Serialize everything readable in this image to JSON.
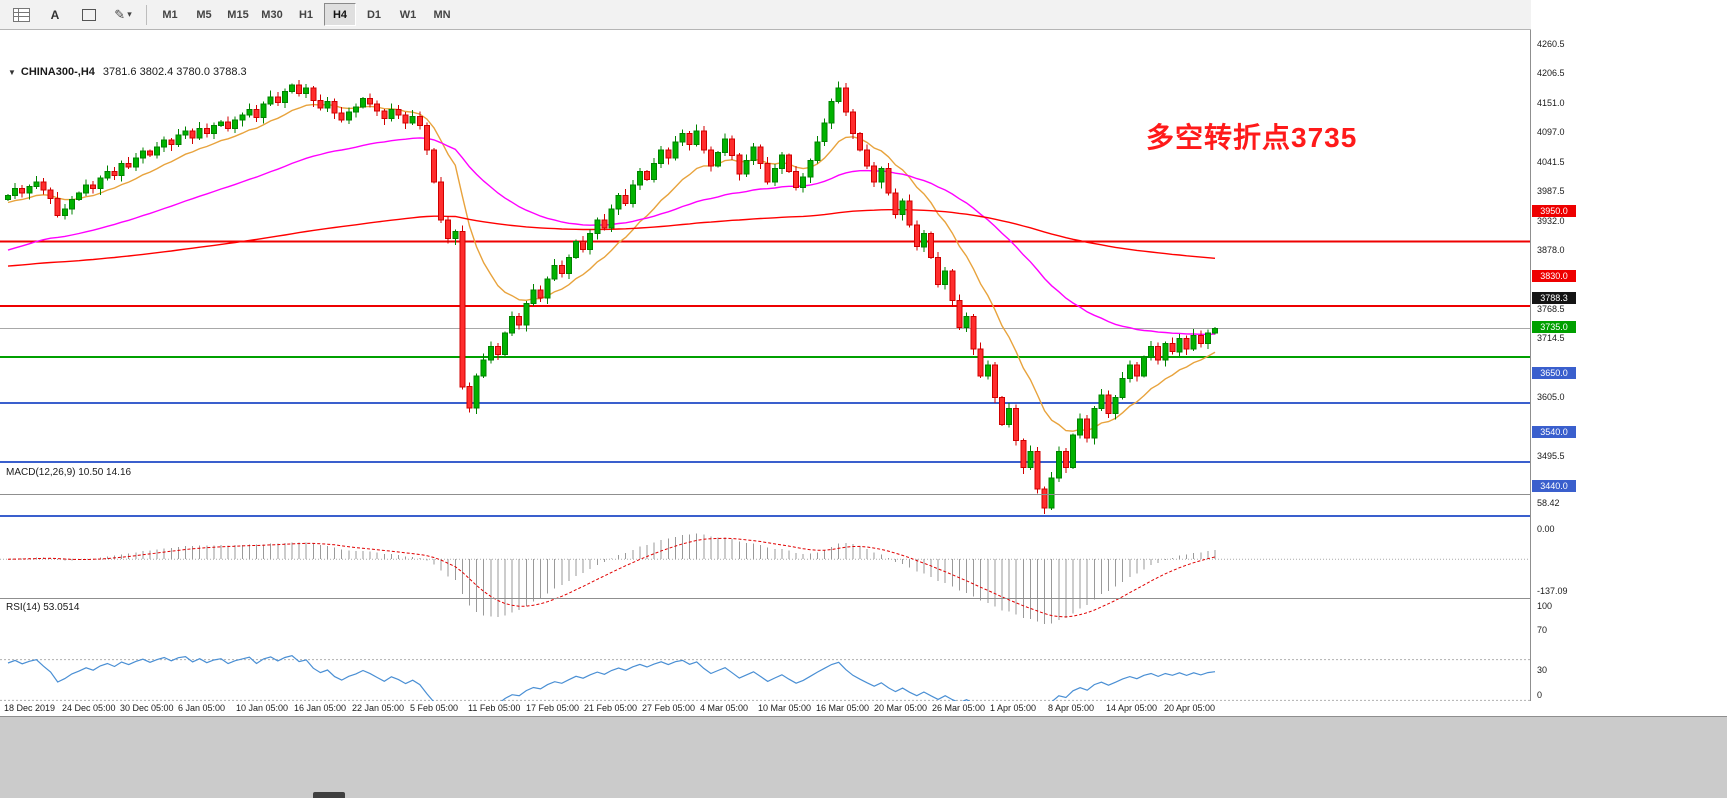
{
  "toolbar": {
    "text_tool_label": "A",
    "timeframes": [
      "M1",
      "M5",
      "M15",
      "M30",
      "H1",
      "H4",
      "D1",
      "W1",
      "MN"
    ],
    "active_timeframe": "H4"
  },
  "chart": {
    "symbol_timeframe": "CHINA300-,H4",
    "ohlc": "3781.6 3802.4 3780.0 3788.3",
    "annotation": {
      "text": "多空转折点3735",
      "color": "#ff1a1a"
    }
  },
  "chart_data": {
    "type": "candlestick",
    "symbol": "CHINA300-",
    "timeframe": "H4",
    "price_axis_ticks": [
      "4260.5",
      "4206.5",
      "4151.0",
      "4097.0",
      "4041.5",
      "3987.5",
      "3932.0",
      "3878.0",
      "3768.5",
      "3714.5",
      "3605.0",
      "3495.5"
    ],
    "time_labels": [
      "18 Dec 2019",
      "24 Dec 05:00",
      "30 Dec 05:00",
      "6 Jan 05:00",
      "10 Jan 05:00",
      "16 Jan 05:00",
      "22 Jan 05:00",
      "5 Feb 05:00",
      "11 Feb 05:00",
      "17 Feb 05:00",
      "21 Feb 05:00",
      "27 Feb 05:00",
      "4 Mar 05:00",
      "10 Mar 05:00",
      "16 Mar 05:00",
      "20 Mar 05:00",
      "26 Mar 05:00",
      "1 Apr 05:00",
      "8 Apr 05:00",
      "14 Apr 05:00",
      "20 Apr 05:00"
    ],
    "first_open": 4028,
    "closes": [
      4035,
      4048,
      4040,
      4052,
      4060,
      4045,
      4030,
      3998,
      4010,
      4028,
      4040,
      4055,
      4048,
      4068,
      4080,
      4072,
      4095,
      4088,
      4105,
      4118,
      4110,
      4125,
      4138,
      4130,
      4148,
      4155,
      4142,
      4160,
      4150,
      4165,
      4172,
      4160,
      4175,
      4185,
      4195,
      4180,
      4205,
      4218,
      4208,
      4228,
      4240,
      4225,
      4235,
      4212,
      4198,
      4210,
      4188,
      4175,
      4190,
      4200,
      4215,
      4205,
      4192,
      4178,
      4195,
      4185,
      4170,
      4182,
      4165,
      4120,
      4060,
      3990,
      3955,
      3968,
      3680,
      3640,
      3700,
      3730,
      3755,
      3740,
      3780,
      3810,
      3795,
      3835,
      3860,
      3845,
      3880,
      3905,
      3890,
      3920,
      3950,
      3935,
      3965,
      3990,
      3975,
      4010,
      4035,
      4020,
      4055,
      4080,
      4065,
      4095,
      4120,
      4105,
      4135,
      4150,
      4130,
      4155,
      4120,
      4090,
      4115,
      4140,
      4110,
      4075,
      4100,
      4125,
      4095,
      4060,
      4085,
      4110,
      4080,
      4050,
      4070,
      4100,
      4135,
      4170,
      4210,
      4235,
      4190,
      4150,
      4120,
      4090,
      4060,
      4085,
      4040,
      4000,
      4025,
      3980,
      3940,
      3965,
      3920,
      3870,
      3895,
      3840,
      3790,
      3810,
      3750,
      3700,
      3720,
      3660,
      3610,
      3640,
      3580,
      3530,
      3560,
      3490,
      3455,
      3510,
      3560,
      3530,
      3590,
      3620,
      3585,
      3640,
      3665,
      3630,
      3660,
      3695,
      3720,
      3700,
      3735,
      3755,
      3730,
      3760,
      3745,
      3770,
      3750,
      3775,
      3760,
      3780,
      3788.3
    ],
    "moving_averages": [
      {
        "name": "ma-fast",
        "color": "#e8a33d",
        "alpha": 0.14,
        "seed": 4020
      },
      {
        "name": "ma-mid",
        "color": "#ff00ff",
        "alpha": 0.036,
        "seed": 3930
      },
      {
        "name": "ma-slow",
        "color": "#ff0000",
        "alpha": 0.008,
        "seed": 3903
      }
    ],
    "levels": [
      {
        "value": 3950.0,
        "label": "3950.0",
        "color": "#ee0000"
      },
      {
        "value": 3830.0,
        "label": "3830.0",
        "color": "#ee0000"
      },
      {
        "value": 3735.0,
        "label": "3735.0",
        "color": "#00a000"
      },
      {
        "value": 3650.0,
        "label": "3650.0",
        "color": "#3a5fcd"
      },
      {
        "value": 3540.0,
        "label": "3540.0",
        "color": "#3a5fcd"
      },
      {
        "value": 3440.0,
        "label": "3440.0",
        "color": "#3a5fcd"
      }
    ],
    "current_price": {
      "value": 3788.3,
      "label": "3788.3",
      "line_color": "#a8a8a8",
      "tag_color": "#141414"
    },
    "candle_colors": {
      "up_fill": "#00b200",
      "up_stroke": "#008200",
      "down_fill": "#ff2d2d",
      "down_stroke": "#d00000"
    },
    "indicators": {
      "macd": {
        "label": "MACD(12,26,9) 10.50 14.16",
        "params": [
          12,
          26,
          9
        ],
        "axis_labels": [
          "58.42",
          "0.00",
          "-137.09"
        ],
        "histogram_color": "#9a9a9a",
        "signal_color": "#e00000"
      },
      "rsi": {
        "label": "RSI(14) 53.0514",
        "period": 14,
        "axis_labels": [
          "100",
          "70",
          "30",
          "0"
        ],
        "levels": [
          70,
          30
        ],
        "line_color": "#4a8fd4"
      }
    }
  }
}
